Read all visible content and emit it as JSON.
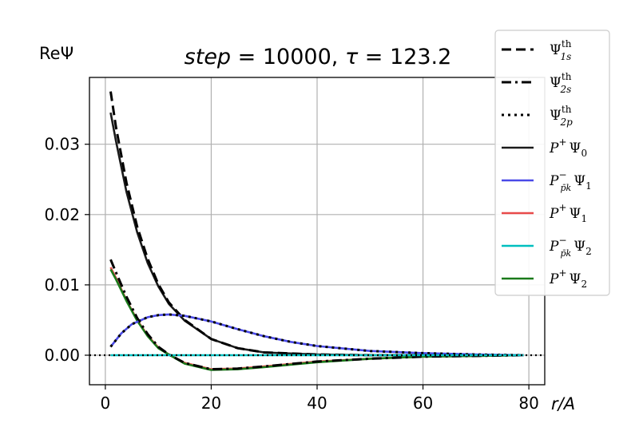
{
  "chart_data": {
    "type": "line",
    "title": "step = 10000, τ = 123.2",
    "title_parts": {
      "step_label": "step",
      "step_value": "10000",
      "tau_label": "τ",
      "tau_value": "123.2"
    },
    "xlabel": "r/A",
    "ylabel": "ReΨ",
    "xlim": [
      -3,
      83
    ],
    "ylim": [
      -0.0042,
      0.0395
    ],
    "xticks": [
      0,
      20,
      40,
      60,
      80
    ],
    "xtick_labels": [
      "0",
      "20",
      "40",
      "60",
      "80"
    ],
    "yticks": [
      0.0,
      0.01,
      0.02,
      0.03
    ],
    "ytick_labels": [
      "0.00",
      "0.01",
      "0.02",
      "0.03"
    ],
    "grid": true,
    "legend_placement": "outside-top-right",
    "series": [
      {
        "name": "Ψ1s th",
        "legend_main": "Ψ",
        "legend_sup": "th",
        "legend_sub": "1s",
        "style": "dashed",
        "color": "#000000",
        "x": [
          1,
          2,
          4,
          6,
          8,
          10,
          12,
          15,
          20,
          25,
          30,
          40,
          50,
          60,
          70,
          79
        ],
        "y": [
          0.0375,
          0.0325,
          0.0245,
          0.0183,
          0.0137,
          0.0101,
          0.0075,
          0.005,
          0.0023,
          0.001,
          0.0004,
          0.0001,
          0.0,
          0.0,
          0.0,
          0.0
        ]
      },
      {
        "name": "Ψ2s th",
        "legend_main": "Ψ",
        "legend_sup": "th",
        "legend_sub": "2s",
        "style": "dashdot",
        "color": "#000000",
        "x": [
          1,
          2,
          4,
          6,
          8,
          10,
          12,
          15,
          20,
          25,
          30,
          40,
          50,
          60,
          70,
          79
        ],
        "y": [
          0.0136,
          0.0118,
          0.0083,
          0.0053,
          0.003,
          0.0012,
          0.0001,
          -0.0011,
          -0.002,
          -0.0019,
          -0.0016,
          -0.0009,
          -0.0005,
          -0.0002,
          -0.0001,
          0.0
        ]
      },
      {
        "name": "Ψ2p th",
        "legend_main": "Ψ",
        "legend_sup": "th",
        "legend_sub": "2p",
        "style": "dotted",
        "color": "#000000",
        "x": [
          1,
          3,
          5,
          8,
          10,
          12,
          15,
          20,
          25,
          30,
          35,
          40,
          50,
          60,
          70,
          79
        ],
        "y": [
          0.0012,
          0.0031,
          0.0044,
          0.0054,
          0.0057,
          0.0058,
          0.0056,
          0.0048,
          0.0037,
          0.0027,
          0.0019,
          0.0013,
          0.0006,
          0.0003,
          0.0001,
          0.0
        ]
      },
      {
        "name": "P+Ψ0",
        "legend_main": "P",
        "legend_sup": "+",
        "legend_sub": "",
        "legend_psi": "Ψ",
        "legend_psi_sub": "0",
        "style": "solid",
        "color": "#1a1a1a",
        "x": [
          1,
          2,
          4,
          6,
          8,
          10,
          12,
          15,
          20,
          25,
          30,
          40,
          50,
          60,
          70,
          79
        ],
        "y": [
          0.0345,
          0.0305,
          0.0232,
          0.0175,
          0.0131,
          0.0098,
          0.0073,
          0.0049,
          0.0023,
          0.001,
          0.0004,
          0.0001,
          0.0,
          0.0,
          0.0,
          0.0
        ]
      },
      {
        "name": "P−pkΨ1",
        "legend_main": "P",
        "legend_sup": "−",
        "legend_sub": "p̄k",
        "legend_psi": "Ψ",
        "legend_psi_sub": "1",
        "style": "solid",
        "color": "#4a4ae8",
        "x": [
          1,
          3,
          5,
          8,
          10,
          12,
          15,
          20,
          25,
          30,
          35,
          40,
          50,
          60,
          70,
          79
        ],
        "y": [
          0.0012,
          0.0031,
          0.0044,
          0.0054,
          0.0057,
          0.0058,
          0.0056,
          0.0048,
          0.0037,
          0.0027,
          0.0019,
          0.0013,
          0.0006,
          0.0003,
          0.0001,
          0.0
        ]
      },
      {
        "name": "P+Ψ1",
        "legend_main": "P",
        "legend_sup": "+",
        "legend_sub": "",
        "legend_psi": "Ψ",
        "legend_psi_sub": "1",
        "style": "solid",
        "color": "#e84a4a",
        "x": [
          1,
          2,
          4,
          6,
          8,
          10,
          12,
          15,
          20,
          25,
          30,
          40,
          50,
          60,
          70,
          79
        ],
        "y": [
          0.0125,
          0.011,
          0.0078,
          0.005,
          0.0028,
          0.0011,
          0.0001,
          -0.0011,
          -0.002,
          -0.0019,
          -0.0016,
          -0.0009,
          -0.0005,
          -0.0002,
          -0.0001,
          0.0
        ]
      },
      {
        "name": "P−pkΨ2",
        "legend_main": "P",
        "legend_sup": "−",
        "legend_sub": "p̄k",
        "legend_psi": "Ψ",
        "legend_psi_sub": "2",
        "style": "solid",
        "color": "#00bfbf",
        "x": [
          1,
          10,
          20,
          40,
          60,
          79
        ],
        "y": [
          0.0,
          0.0,
          0.0,
          0.0,
          0.0,
          0.0
        ]
      },
      {
        "name": "P+Ψ2",
        "legend_main": "P",
        "legend_sup": "+",
        "legend_sub": "",
        "legend_psi": "Ψ",
        "legend_psi_sub": "2",
        "style": "solid",
        "color": "#1a7a1a",
        "x": [
          1,
          2,
          4,
          6,
          8,
          10,
          12,
          15,
          20,
          25,
          30,
          40,
          50,
          60,
          70,
          79
        ],
        "y": [
          0.0122,
          0.0108,
          0.0077,
          0.0049,
          0.0027,
          0.001,
          0.0001,
          -0.0012,
          -0.0021,
          -0.002,
          -0.0017,
          -0.001,
          -0.0005,
          -0.0002,
          -0.0001,
          0.0
        ]
      }
    ]
  }
}
